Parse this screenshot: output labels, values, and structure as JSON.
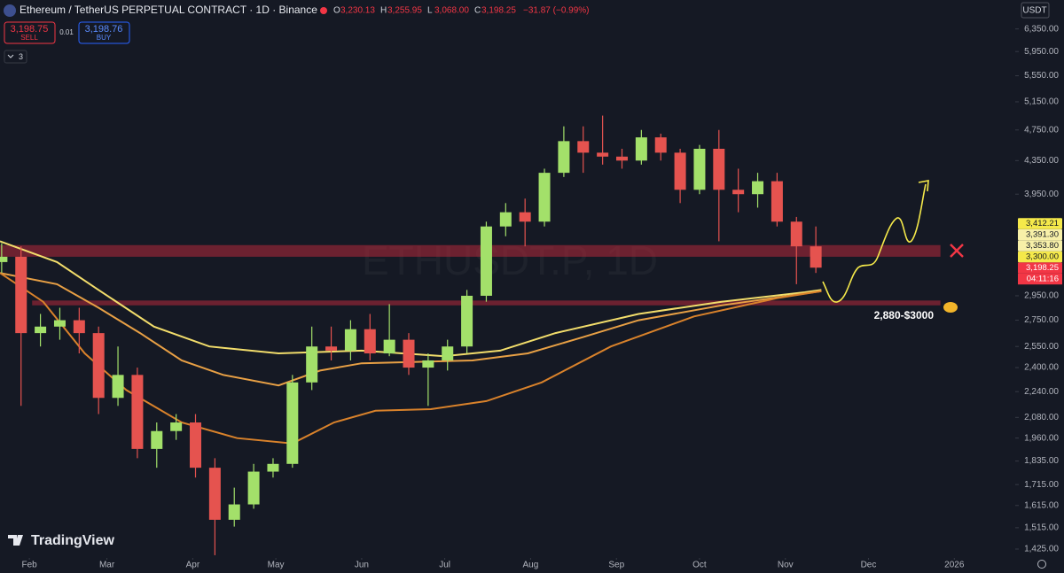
{
  "header": {
    "title": "Ethereum / TetherUS PERPETUAL CONTRACT · 1D · Binance",
    "ohlc": [
      {
        "key": "O",
        "value": "3,230.13"
      },
      {
        "key": "H",
        "value": "3,255.95"
      },
      {
        "key": "L",
        "value": "3,068.00"
      },
      {
        "key": "C",
        "value": "3,198.25"
      }
    ],
    "change": "−31.87 (−0.99%)",
    "sell_price": "3,198.75",
    "sell": "SELL",
    "spread": "0.01",
    "buy_price": "3,198.76",
    "buy": "BUY",
    "indicators": "3",
    "currency": "USDT",
    "logo": "TradingView"
  },
  "chart_data": {
    "type": "candlestick",
    "watermark": "ETHUSDT.P, 1D",
    "log_scale": true,
    "grid": false,
    "up_color": "#a3e06a",
    "down_color": "#e5534f",
    "xlim": [
      -10.6,
      356
    ],
    "xticks": [
      {
        "value": 0,
        "label": "Feb"
      },
      {
        "value": 28,
        "label": "Mar"
      },
      {
        "value": 59,
        "label": "Apr"
      },
      {
        "value": 89,
        "label": "May"
      },
      {
        "value": 120,
        "label": "Jun"
      },
      {
        "value": 150,
        "label": "Jul"
      },
      {
        "value": 181,
        "label": "Aug"
      },
      {
        "value": 212,
        "label": "Sep"
      },
      {
        "value": 242,
        "label": "Oct"
      },
      {
        "value": 273,
        "label": "Nov"
      },
      {
        "value": 303,
        "label": "Dec"
      },
      {
        "value": 334,
        "label": "2026"
      }
    ],
    "ylim": [
      1382,
      6900
    ],
    "yticks": [
      {
        "value": 6350,
        "label": "6,350.00"
      },
      {
        "value": 5950,
        "label": "5,950.00"
      },
      {
        "value": 5550,
        "label": "5,550.00"
      },
      {
        "value": 5150,
        "label": "5,150.00"
      },
      {
        "value": 4750,
        "label": "4,750.00"
      },
      {
        "value": 4350,
        "label": "4,350.00"
      },
      {
        "value": 3950,
        "label": "3,950.00"
      },
      {
        "value": 2950,
        "label": "2,950.00"
      },
      {
        "value": 2750,
        "label": "2,750.00"
      },
      {
        "value": 2550,
        "label": "2,550.00"
      },
      {
        "value": 2400,
        "label": "2,400.00"
      },
      {
        "value": 2240,
        "label": "2,240.00"
      },
      {
        "value": 2080,
        "label": "2,080.00"
      },
      {
        "value": 1960,
        "label": "1,960.00"
      },
      {
        "value": 1835,
        "label": "1,835.00"
      },
      {
        "value": 1715,
        "label": "1,715.00"
      },
      {
        "value": 1615,
        "label": "1,615.00"
      },
      {
        "value": 1515,
        "label": "1,515.00"
      },
      {
        "value": 1425,
        "label": "1,425.00"
      }
    ],
    "candles": [
      {
        "x": -10,
        "open": 3250,
        "high": 3430,
        "low": 3150,
        "close": 3300
      },
      {
        "x": -3,
        "open": 3300,
        "high": 3400,
        "low": 2150,
        "close": 2650
      },
      {
        "x": 4,
        "open": 2650,
        "high": 2800,
        "low": 2550,
        "close": 2700
      },
      {
        "x": 11,
        "open": 2700,
        "high": 2850,
        "low": 2600,
        "close": 2750
      },
      {
        "x": 18,
        "open": 2750,
        "high": 2850,
        "low": 2500,
        "close": 2650
      },
      {
        "x": 25,
        "open": 2650,
        "high": 2700,
        "low": 2100,
        "close": 2200
      },
      {
        "x": 32,
        "open": 2200,
        "high": 2550,
        "low": 2150,
        "close": 2350
      },
      {
        "x": 39,
        "open": 2350,
        "high": 2400,
        "low": 1850,
        "close": 1900
      },
      {
        "x": 46,
        "open": 1900,
        "high": 2050,
        "low": 1800,
        "close": 2000
      },
      {
        "x": 53,
        "open": 2000,
        "high": 2100,
        "low": 1950,
        "close": 2050
      },
      {
        "x": 60,
        "open": 2050,
        "high": 2100,
        "low": 1750,
        "close": 1800
      },
      {
        "x": 67,
        "open": 1800,
        "high": 1850,
        "low": 1400,
        "close": 1550
      },
      {
        "x": 74,
        "open": 1550,
        "high": 1700,
        "low": 1520,
        "close": 1620
      },
      {
        "x": 81,
        "open": 1620,
        "high": 1820,
        "low": 1600,
        "close": 1780
      },
      {
        "x": 88,
        "open": 1780,
        "high": 1850,
        "low": 1750,
        "close": 1820
      },
      {
        "x": 95,
        "open": 1820,
        "high": 2350,
        "low": 1800,
        "close": 2300
      },
      {
        "x": 102,
        "open": 2300,
        "high": 2700,
        "low": 2250,
        "close": 2550
      },
      {
        "x": 109,
        "open": 2550,
        "high": 2700,
        "low": 2450,
        "close": 2520
      },
      {
        "x": 116,
        "open": 2520,
        "high": 2750,
        "low": 2450,
        "close": 2680
      },
      {
        "x": 123,
        "open": 2680,
        "high": 2800,
        "low": 2450,
        "close": 2500
      },
      {
        "x": 130,
        "open": 2500,
        "high": 2880,
        "low": 2480,
        "close": 2600
      },
      {
        "x": 137,
        "open": 2600,
        "high": 2650,
        "low": 2350,
        "close": 2400
      },
      {
        "x": 144,
        "open": 2400,
        "high": 2500,
        "low": 2150,
        "close": 2450
      },
      {
        "x": 151,
        "open": 2450,
        "high": 2600,
        "low": 2380,
        "close": 2550
      },
      {
        "x": 158,
        "open": 2550,
        "high": 3000,
        "low": 2500,
        "close": 2950
      },
      {
        "x": 165,
        "open": 2950,
        "high": 3650,
        "low": 2900,
        "close": 3600
      },
      {
        "x": 172,
        "open": 3600,
        "high": 3850,
        "low": 3500,
        "close": 3750
      },
      {
        "x": 179,
        "open": 3750,
        "high": 3900,
        "low": 3400,
        "close": 3650
      },
      {
        "x": 186,
        "open": 3650,
        "high": 4250,
        "low": 3600,
        "close": 4200
      },
      {
        "x": 193,
        "open": 4200,
        "high": 4800,
        "low": 4150,
        "close": 4600
      },
      {
        "x": 200,
        "open": 4600,
        "high": 4800,
        "low": 4200,
        "close": 4450
      },
      {
        "x": 207,
        "open": 4450,
        "high": 4950,
        "low": 4300,
        "close": 4400
      },
      {
        "x": 214,
        "open": 4400,
        "high": 4500,
        "low": 4250,
        "close": 4350
      },
      {
        "x": 221,
        "open": 4350,
        "high": 4750,
        "low": 4300,
        "close": 4650
      },
      {
        "x": 228,
        "open": 4650,
        "high": 4700,
        "low": 4350,
        "close": 4450
      },
      {
        "x": 235,
        "open": 4450,
        "high": 4500,
        "low": 3850,
        "close": 4000
      },
      {
        "x": 242,
        "open": 4000,
        "high": 4550,
        "low": 3950,
        "close": 4500
      },
      {
        "x": 249,
        "open": 4500,
        "high": 4750,
        "low": 3450,
        "close": 4000
      },
      {
        "x": 256,
        "open": 4000,
        "high": 4250,
        "low": 3750,
        "close": 3950
      },
      {
        "x": 263,
        "open": 3950,
        "high": 4200,
        "low": 3800,
        "close": 4100
      },
      {
        "x": 270,
        "open": 4100,
        "high": 4200,
        "low": 3600,
        "close": 3650
      },
      {
        "x": 277,
        "open": 3650,
        "high": 3700,
        "low": 3050,
        "close": 3400
      },
      {
        "x": 284,
        "open": 3400,
        "high": 3600,
        "low": 3150,
        "close": 3198.25
      }
    ],
    "lines": [
      {
        "color": "#f2dd6b",
        "x": [
          -10.6,
          10,
          25,
          45,
          65,
          90,
          120,
          150,
          170,
          190,
          220,
          250,
          280,
          286
        ],
        "values": [
          3450,
          3250,
          3000,
          2700,
          2550,
          2500,
          2520,
          2480,
          2520,
          2650,
          2800,
          2900,
          2980,
          3000
        ]
      },
      {
        "color": "#e8a045",
        "x": [
          -10.6,
          10,
          25,
          40,
          55,
          70,
          90,
          105,
          120,
          140,
          160,
          180,
          200,
          220,
          250,
          286
        ],
        "values": [
          3150,
          3050,
          2850,
          2650,
          2450,
          2350,
          2280,
          2380,
          2430,
          2440,
          2450,
          2500,
          2620,
          2750,
          2870,
          2990
        ]
      },
      {
        "color": "#d9822b",
        "x": [
          -10.6,
          5,
          20,
          35,
          55,
          75,
          95,
          110,
          125,
          145,
          165,
          185,
          210,
          240,
          270,
          286
        ],
        "values": [
          3150,
          2900,
          2500,
          2250,
          2050,
          1960,
          1930,
          2050,
          2120,
          2130,
          2180,
          2300,
          2550,
          2780,
          2930,
          2990
        ]
      }
    ],
    "zones": [
      {
        "range": [
          3300,
          3412.21
        ],
        "x": [
          -10.6,
          329
        ]
      },
      {
        "range": [
          2870,
          2910
        ],
        "x": [
          1,
          329
        ]
      }
    ],
    "zone_label": "2,880-$3000",
    "price_labels": [
      {
        "value": 3198.25,
        "label": "3,198.25",
        "color": "#f23645"
      },
      {
        "value": 3300,
        "label": "3,300.00",
        "color": "#f5e94a"
      },
      {
        "value": 3353.8,
        "label": "3,353.80",
        "color": "#f7f0a8"
      },
      {
        "value": 3391.3,
        "label": "3,391.30",
        "color": "#f7f0a8"
      },
      {
        "value": 3412.21,
        "label": "3,412.21",
        "color": "#f5e94a"
      }
    ],
    "countdown": "04:11:16"
  }
}
